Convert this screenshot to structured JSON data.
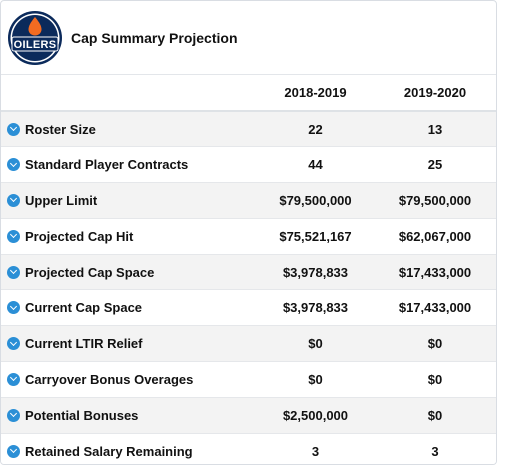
{
  "header": {
    "title": "Cap Summary Projection",
    "logo_text": "OILERS"
  },
  "table": {
    "columns": [
      "2018-2019",
      "2019-2020"
    ],
    "rows": [
      {
        "label": "Roster Size",
        "values": [
          "22",
          "13"
        ]
      },
      {
        "label": "Standard Player Contracts",
        "values": [
          "44",
          "25"
        ]
      },
      {
        "label": "Upper Limit",
        "values": [
          "$79,500,000",
          "$79,500,000"
        ]
      },
      {
        "label": "Projected Cap Hit",
        "values": [
          "$75,521,167",
          "$62,067,000"
        ]
      },
      {
        "label": "Projected Cap Space",
        "values": [
          "$3,978,833",
          "$17,433,000"
        ]
      },
      {
        "label": "Current Cap Space",
        "values": [
          "$3,978,833",
          "$17,433,000"
        ]
      },
      {
        "label": "Current LTIR Relief",
        "values": [
          "$0",
          "$0"
        ]
      },
      {
        "label": "Carryover Bonus Overages",
        "values": [
          "$0",
          "$0"
        ]
      },
      {
        "label": "Potential Bonuses",
        "values": [
          "$2,500,000",
          "$0"
        ]
      },
      {
        "label": "Retained Salary Remaining",
        "values": [
          "3",
          "3"
        ]
      }
    ]
  },
  "icons": {
    "row_toggle": "chevron-down-circle-icon"
  },
  "colors": {
    "accent": "#2b8fd6",
    "logo_navy": "#0b2a5b",
    "logo_orange": "#f26b21",
    "row_alt": "#f3f3f3"
  }
}
